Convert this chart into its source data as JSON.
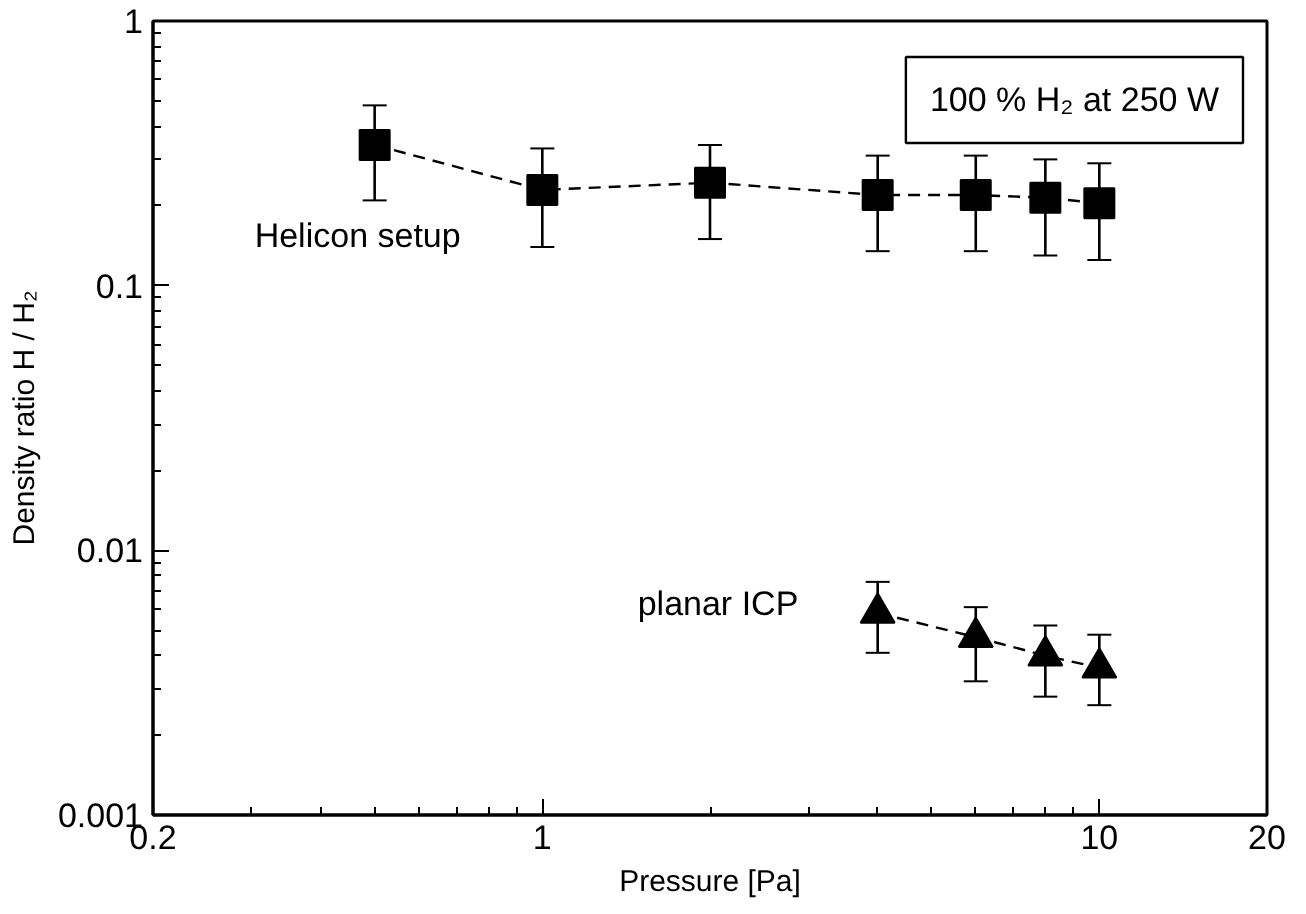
{
  "chart_data": {
    "type": "line",
    "xlabel": "Pressure [Pa]",
    "ylabel": "Density ratio H / H₂",
    "log": "xy",
    "xlim": [
      0.2,
      20
    ],
    "xticks": [
      0.2,
      1,
      10,
      20
    ],
    "ylim": [
      0.001,
      1
    ],
    "yticks": [
      0.001,
      0.01,
      0.1,
      1
    ],
    "grid": false,
    "line_style": "dashed",
    "annotations": [
      "100 % H₂ at 250 W"
    ],
    "series": [
      {
        "name": "Helicon setup",
        "color": "#000000",
        "marker": "square",
        "x": [
          0.5,
          1,
          2,
          4,
          6,
          8,
          10
        ],
        "values": [
          0.34,
          0.23,
          0.245,
          0.22,
          0.22,
          0.215,
          0.205
        ],
        "errors": [
          [
            0.21,
            0.48
          ],
          [
            0.14,
            0.33
          ],
          [
            0.15,
            0.34
          ],
          [
            0.135,
            0.31
          ],
          [
            0.135,
            0.31
          ],
          [
            0.13,
            0.3
          ],
          [
            0.125,
            0.29
          ]
        ]
      },
      {
        "name": "planar ICP",
        "color": "#000000",
        "marker": "triangle",
        "x": [
          4,
          6,
          8,
          10
        ],
        "values": [
          0.0058,
          0.0047,
          0.004,
          0.0036
        ],
        "errors": [
          [
            0.0041,
            0.0076
          ],
          [
            0.0032,
            0.0061
          ],
          [
            0.0028,
            0.0052
          ],
          [
            0.0026,
            0.0048
          ]
        ]
      }
    ]
  }
}
